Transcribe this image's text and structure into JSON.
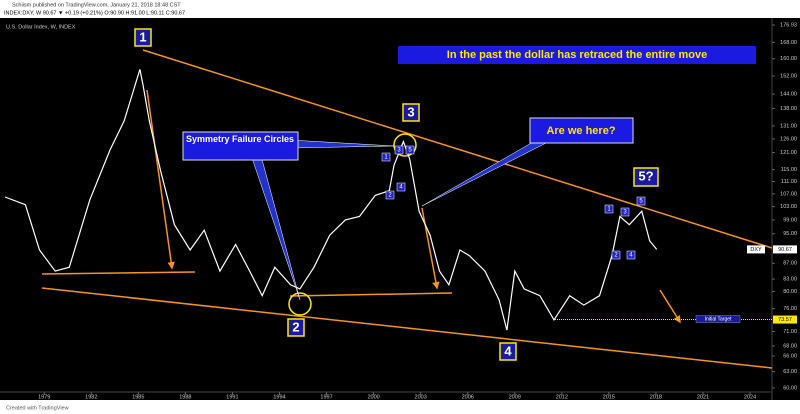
{
  "header": {
    "publisher": "Schiism published on TradingView.com, January 21, 2018 18:48 CST",
    "quote": "INDEX:DXY, W  90.67 ▼ +0.19 (+0.21%) O:90.90 H:91.00 L:90.11 C:90.67"
  },
  "footer": "Created with TradingView",
  "chart_data": {
    "type": "line",
    "title": "U.S. Dollar Index, W, INDEX",
    "x": [
      1976.5,
      1977.8,
      1978.7,
      1979.7,
      1980.6,
      1981.9,
      1983.2,
      1984.1,
      1985.1,
      1985.3,
      1985.7,
      1986.4,
      1987.3,
      1988.3,
      1989.2,
      1990.2,
      1991.2,
      1992.1,
      1992.9,
      1993.7,
      1994.7,
      1995.3,
      1996.2,
      1997.2,
      1998.2,
      1999.1,
      2000.1,
      2001.0,
      2001.3,
      2001.9,
      2002.3,
      2002.9,
      2003.6,
      2004.2,
      2004.8,
      2005.5,
      2006.1,
      2007.1,
      2008.0,
      2008.5,
      2009.0,
      2009.6,
      2010.6,
      2011.5,
      2012.5,
      2013.4,
      2014.4,
      2015.2,
      2015.7,
      2016.3,
      2017.1,
      2017.6,
      2018.05
    ],
    "values": [
      106,
      103.6,
      90.5,
      85,
      86,
      105,
      122,
      133,
      155,
      148,
      133,
      115,
      97.6,
      90.5,
      96,
      85,
      92,
      85,
      79,
      86,
      81.6,
      80.6,
      86,
      94.6,
      99,
      100,
      106.5,
      108,
      116.5,
      125,
      118.7,
      101.6,
      94.6,
      85,
      81.6,
      90.5,
      89,
      85,
      78,
      71.3,
      85,
      80.6,
      79,
      73.5,
      79,
      76.8,
      79,
      89,
      100,
      97.6,
      101.6,
      93,
      90.67
    ],
    "color": "#ffffff",
    "log_scale": true,
    "xlim": [
      1976.5,
      2025.4
    ],
    "ylim": [
      60,
      176.93
    ],
    "xticks": [
      1979,
      1982,
      1985,
      1988,
      1991,
      1994,
      1997,
      2000,
      2003,
      2006,
      2009,
      2012,
      2015,
      2018,
      2021,
      2024
    ],
    "yticks": [
      176.93,
      {
        "value": 168,
        "label": "168.00"
      },
      {
        "value": 160,
        "label": "160.00"
      },
      {
        "value": 152,
        "label": "152.00"
      },
      {
        "value": 144,
        "label": "144.00"
      },
      {
        "value": 138,
        "label": "138.00"
      },
      {
        "value": 131,
        "label": "131.00"
      },
      {
        "value": 126,
        "label": "126.00"
      },
      {
        "value": 121,
        "label": "121.00"
      },
      {
        "value": 115,
        "label": "115.00"
      },
      {
        "value": 111,
        "label": "111.00"
      },
      {
        "value": 107,
        "label": "107.00"
      },
      {
        "value": 103,
        "label": "103.00"
      },
      {
        "value": 99,
        "label": "99.00"
      },
      {
        "value": 95,
        "label": "95.00"
      },
      {
        "value": 87,
        "label": "87.00"
      },
      {
        "value": 83,
        "label": "83.00"
      },
      {
        "value": 80,
        "label": "80.00"
      },
      {
        "value": 76,
        "label": "76.00"
      },
      {
        "value": 71,
        "label": "71.00"
      },
      {
        "value": 68,
        "label": "68.00"
      },
      {
        "value": 66,
        "label": "66.00"
      },
      {
        "value": 63,
        "label": "63.00"
      },
      {
        "value": 60,
        "label": "60.00"
      }
    ],
    "symbol": "DXY",
    "last": 90.67,
    "target": {
      "label": "Initial Target",
      "value": 73.57
    },
    "annotations": {
      "banner": "In the past the dollar has retraced the entire move",
      "symmetry": "Symmetry Failure Circles",
      "question": "Are we here?",
      "waves": [
        "1",
        "2",
        "3",
        "4",
        "5?"
      ],
      "small_waves_a": [
        "1",
        "2",
        "3",
        "4",
        "5"
      ],
      "small_waves_b": [
        "1",
        "2",
        "3",
        "4",
        "5"
      ]
    }
  }
}
